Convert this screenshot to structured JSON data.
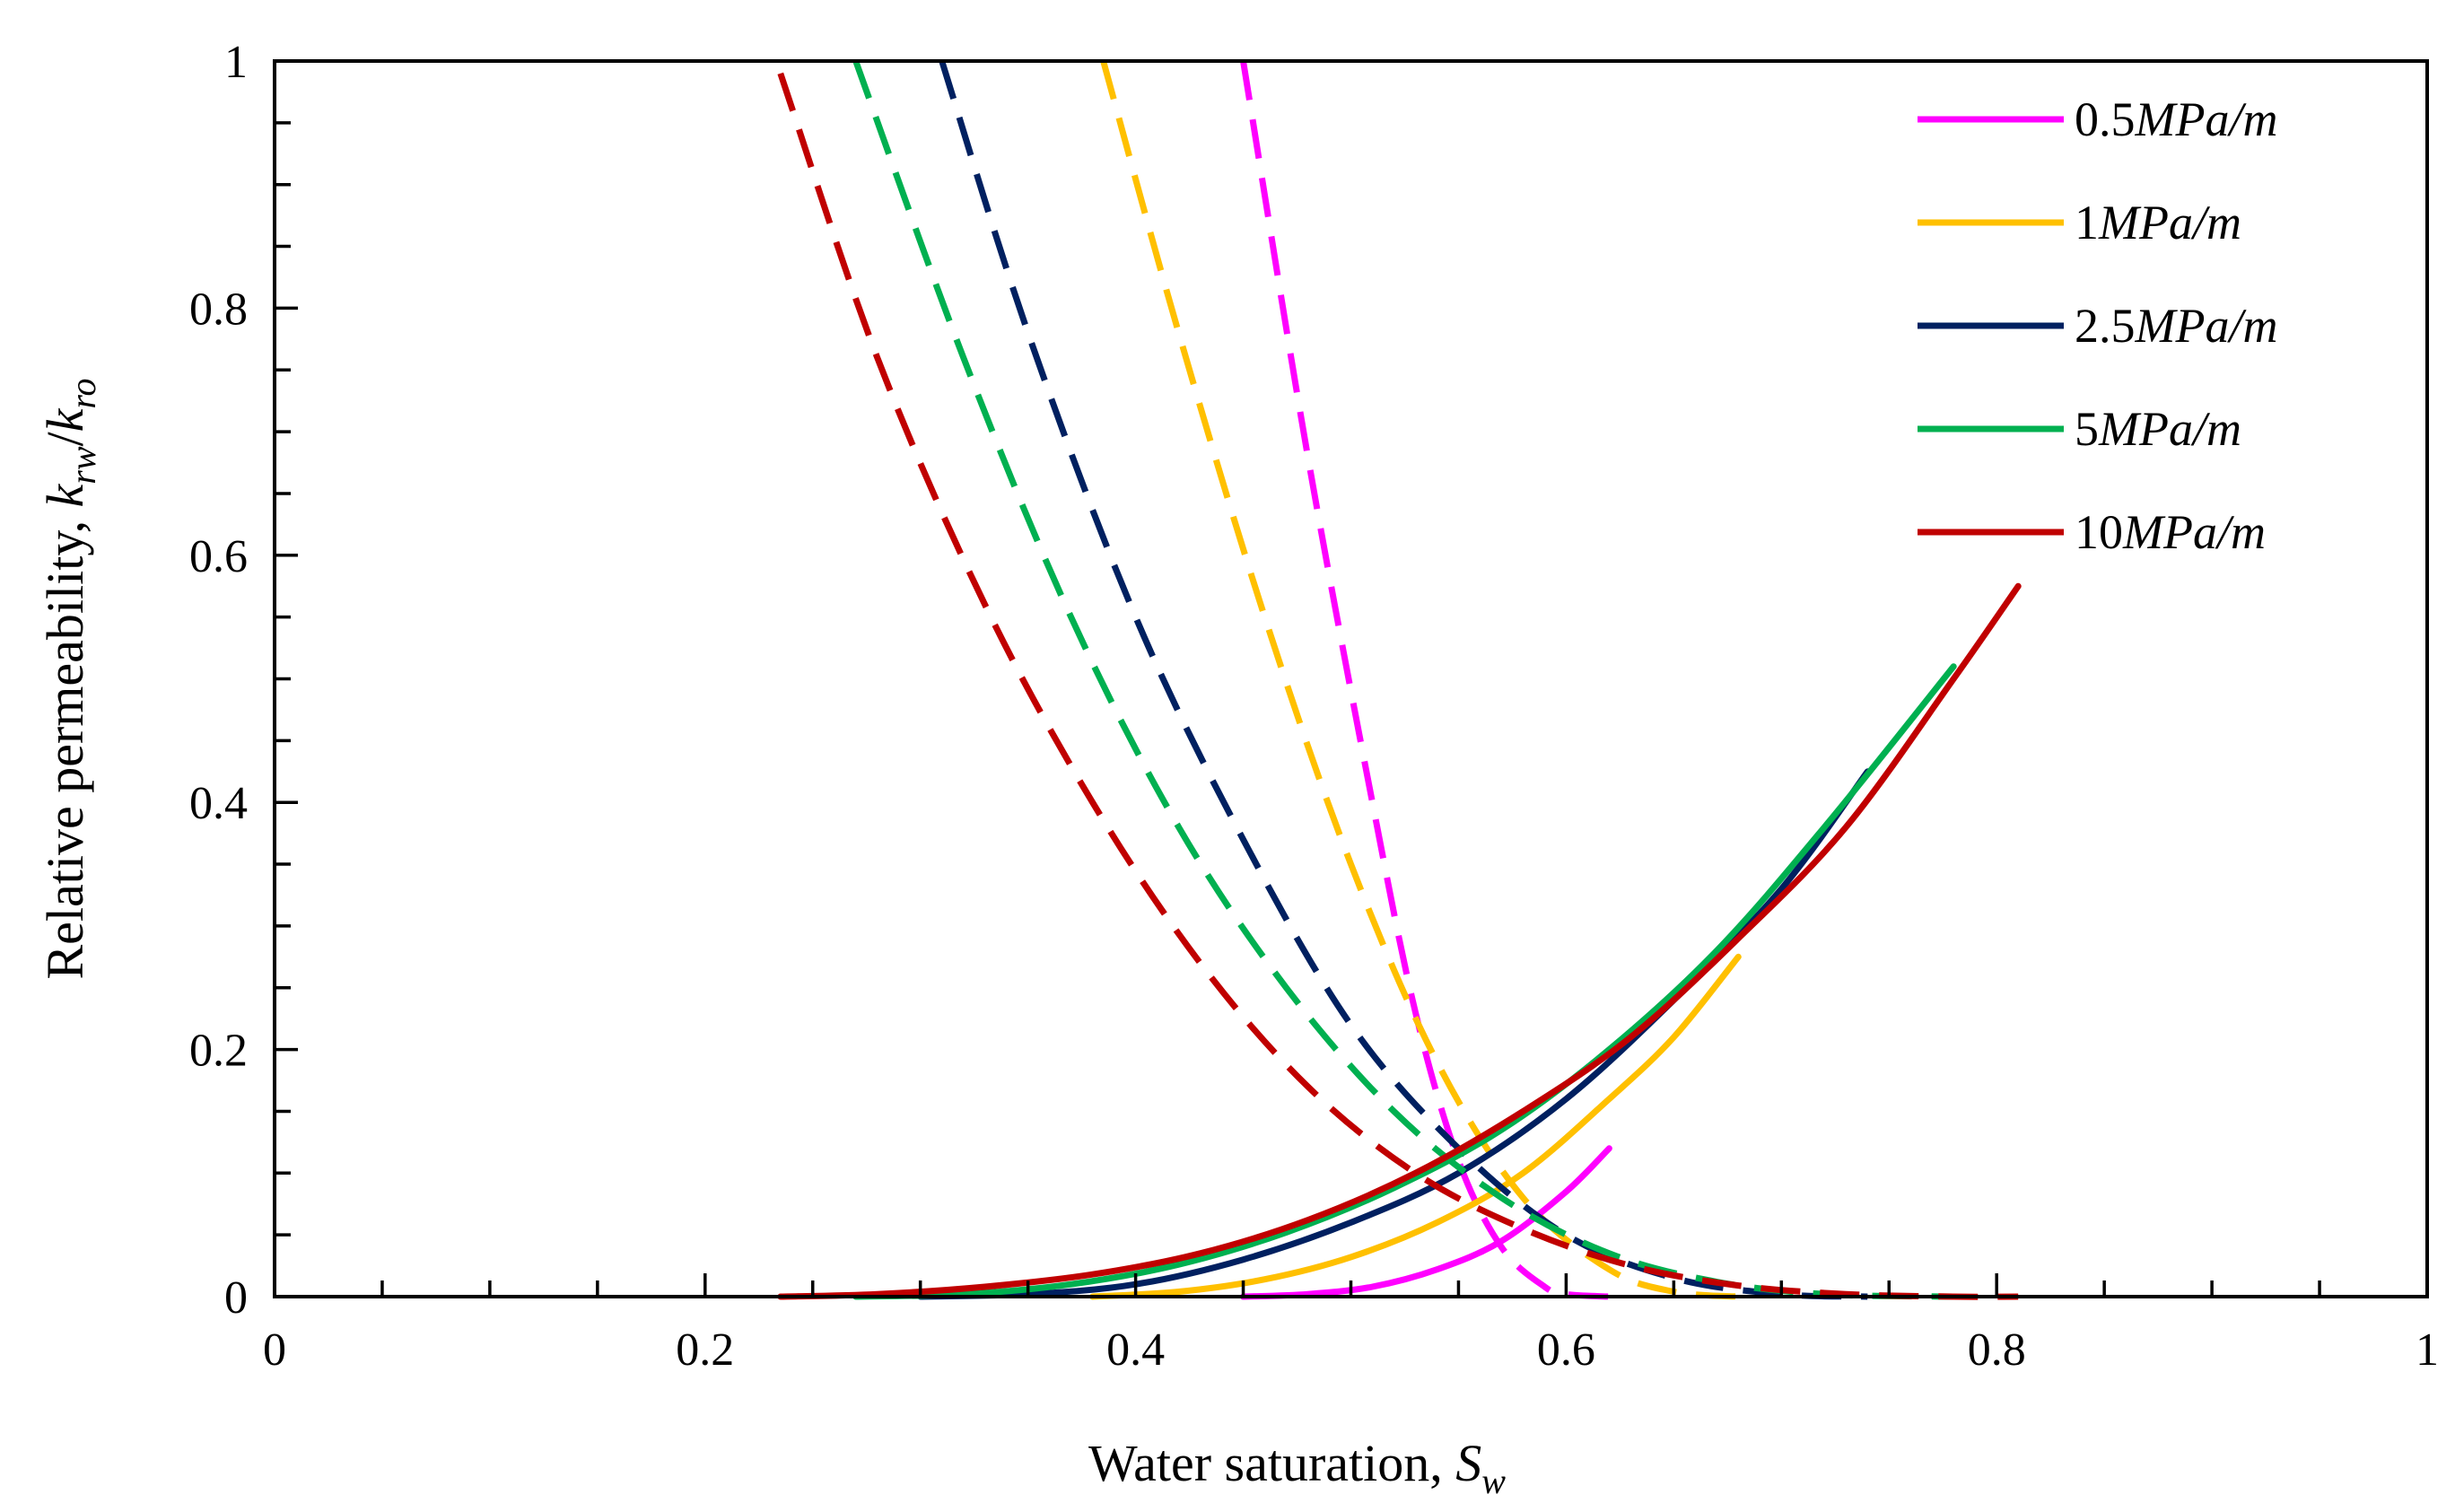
{
  "chart_data": {
    "type": "line",
    "title": "",
    "xlabel": "Water saturation, ",
    "xlabel_symbol": "S",
    "xlabel_sub": "w",
    "ylabel": "Relative permeability, ",
    "ylabel_symbol": "k",
    "ylabel_sub1": "rw",
    "ylabel_slash": "/",
    "ylabel_sub2": "ro",
    "xlim": [
      0,
      1
    ],
    "ylim": [
      0,
      1
    ],
    "xticks": [
      "0",
      "0.2",
      "0.4",
      "0.6",
      "0.8",
      "1"
    ],
    "yticks": [
      "0",
      "0.2",
      "0.4",
      "0.6",
      "0.8",
      "1"
    ],
    "legend_position": "top-right",
    "line_styles": {
      "krw": "solid",
      "kro": "dashed"
    },
    "series": [
      {
        "name": "0.5MPa/m",
        "legend_number": "0.5",
        "legend_unit": "MPa/m",
        "color": "#FF00FF",
        "krw": {
          "x": [
            0.45,
            0.48,
            0.51,
            0.54,
            0.57,
            0.6,
            0.62
          ],
          "y": [
            0.0,
            0.002,
            0.008,
            0.022,
            0.045,
            0.085,
            0.12
          ]
        },
        "kro": {
          "x": [
            0.45,
            0.48,
            0.51,
            0.53,
            0.55,
            0.57,
            0.59,
            0.6,
            0.62
          ],
          "y": [
            1.0,
            0.68,
            0.4,
            0.23,
            0.11,
            0.04,
            0.008,
            0.002,
            0.0
          ]
        }
      },
      {
        "name": "1MPa/m",
        "legend_number": "1",
        "legend_unit": "MPa/m",
        "color": "#FFC000",
        "krw": {
          "x": [
            0.38,
            0.42,
            0.46,
            0.5,
            0.54,
            0.58,
            0.62,
            0.65,
            0.68
          ],
          "y": [
            0.0,
            0.004,
            0.014,
            0.032,
            0.06,
            0.1,
            0.16,
            0.21,
            0.275
          ]
        },
        "kro": {
          "x": [
            0.385,
            0.42,
            0.46,
            0.5,
            0.54,
            0.58,
            0.62,
            0.65,
            0.68
          ],
          "y": [
            1.0,
            0.78,
            0.55,
            0.35,
            0.19,
            0.08,
            0.022,
            0.004,
            0.0
          ]
        }
      },
      {
        "name": "2.5MPa/m",
        "legend_number": "2.5",
        "legend_unit": "MPa/m",
        "color": "#002060",
        "krw": {
          "x": [
            0.3,
            0.35,
            0.4,
            0.45,
            0.5,
            0.55,
            0.6,
            0.65,
            0.7,
            0.74
          ],
          "y": [
            0.0,
            0.002,
            0.01,
            0.03,
            0.06,
            0.1,
            0.16,
            0.24,
            0.33,
            0.425
          ]
        },
        "kro": {
          "x": [
            0.31,
            0.35,
            0.4,
            0.45,
            0.5,
            0.55,
            0.6,
            0.65,
            0.7,
            0.74
          ],
          "y": [
            1.0,
            0.78,
            0.55,
            0.37,
            0.22,
            0.12,
            0.05,
            0.015,
            0.002,
            0.0
          ]
        }
      },
      {
        "name": "5MPa/m",
        "legend_number": "5",
        "legend_unit": "MPa/m",
        "color": "#00B050",
        "krw": {
          "x": [
            0.27,
            0.32,
            0.37,
            0.42,
            0.47,
            0.52,
            0.57,
            0.62,
            0.67,
            0.72,
            0.78
          ],
          "y": [
            0.0,
            0.002,
            0.01,
            0.026,
            0.052,
            0.088,
            0.135,
            0.2,
            0.28,
            0.38,
            0.51
          ]
        },
        "kro": {
          "x": [
            0.27,
            0.32,
            0.37,
            0.42,
            0.47,
            0.52,
            0.57,
            0.62,
            0.67,
            0.72,
            0.78
          ],
          "y": [
            1.0,
            0.76,
            0.55,
            0.38,
            0.25,
            0.15,
            0.08,
            0.035,
            0.012,
            0.002,
            0.0
          ]
        }
      },
      {
        "name": "10MPa/m",
        "legend_number": "10",
        "legend_unit": "MPa/m",
        "color": "#C00000",
        "krw": {
          "x": [
            0.235,
            0.28,
            0.33,
            0.38,
            0.43,
            0.48,
            0.53,
            0.58,
            0.63,
            0.68,
            0.73,
            0.78,
            0.81
          ],
          "y": [
            0.0,
            0.002,
            0.008,
            0.018,
            0.035,
            0.062,
            0.1,
            0.15,
            0.21,
            0.29,
            0.38,
            0.5,
            0.575
          ]
        },
        "kro": {
          "x": [
            0.235,
            0.28,
            0.33,
            0.38,
            0.43,
            0.48,
            0.53,
            0.58,
            0.63,
            0.68,
            0.73,
            0.78,
            0.81
          ],
          "y": [
            0.99,
            0.76,
            0.56,
            0.4,
            0.27,
            0.17,
            0.1,
            0.055,
            0.025,
            0.009,
            0.002,
            0.0,
            0.0
          ]
        }
      }
    ]
  }
}
